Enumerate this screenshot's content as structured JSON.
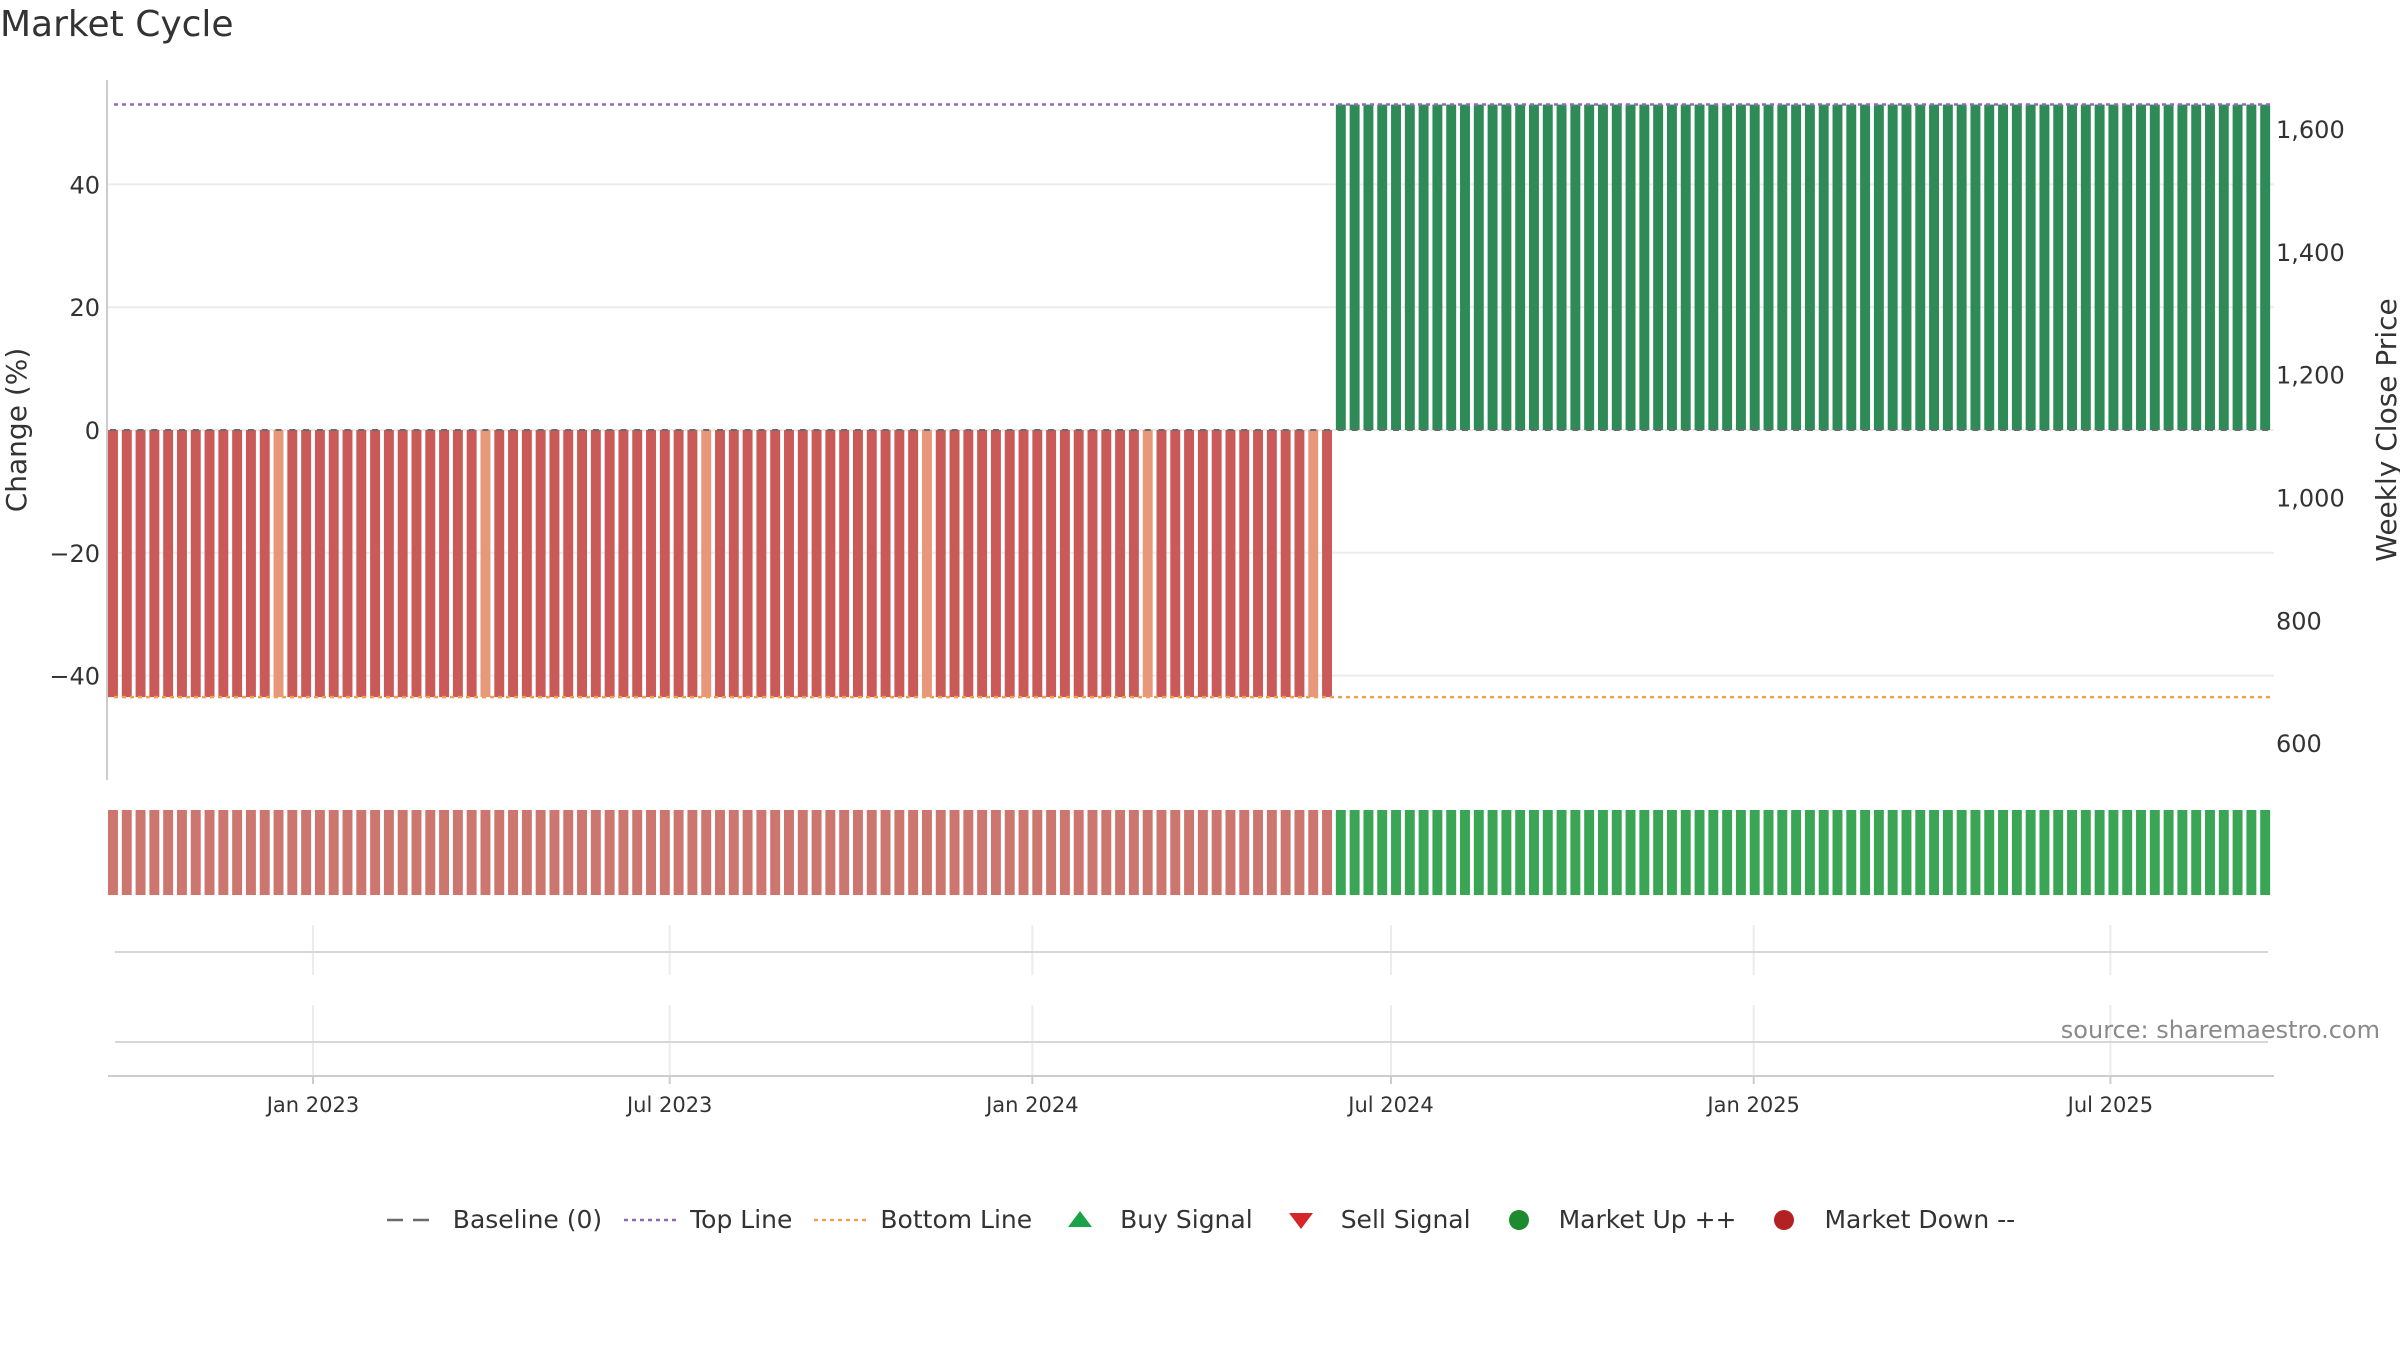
{
  "chart_data": {
    "type": "bar",
    "title": "Market Cycle",
    "ylabel_left": "Change (%)",
    "ylabel_right": "Weekly Close Price",
    "ylim_left": [
      -57,
      57
    ],
    "yticks_left": [
      -40,
      -20,
      0,
      20,
      40
    ],
    "ytick_labels_left": [
      "−40",
      "−20",
      "0",
      "20",
      "40"
    ],
    "ylim_right": [
      540,
      1680
    ],
    "yticks_right": [
      600,
      800,
      1000,
      1200,
      1400,
      1600
    ],
    "ytick_labels_right": [
      "600",
      "800",
      "1,000",
      "1,200",
      "1,400",
      "1,600"
    ],
    "x_range": [
      "2022-09-19",
      "2025-09-22"
    ],
    "xticks": [
      "2023-01-01",
      "2023-07-01",
      "2024-01-01",
      "2024-07-01",
      "2025-01-01",
      "2025-07-01"
    ],
    "xtick_labels": [
      "Jan 2023",
      "Jul 2023",
      "Jan 2024",
      "Jul 2024",
      "Jan 2025",
      "Jul 2025"
    ],
    "top_line": 53,
    "bottom_line": -43.5,
    "baseline": 0,
    "series": [
      {
        "name": "Market Down",
        "start_week": "2022-09-19",
        "end_week": "2024-05-27",
        "value": -43.5,
        "color": "#c95a58",
        "highlight_color": "#e8977a",
        "highlight_weeks": [
          "2022-12-12",
          "2023-03-27",
          "2023-07-17",
          "2023-11-06",
          "2024-02-26",
          "2024-05-20"
        ]
      },
      {
        "name": "Market Up",
        "start_week": "2024-06-03",
        "end_week": "2025-09-15",
        "value": 53,
        "color": "#2e8b57"
      }
    ],
    "regime_strip": [
      {
        "start_week": "2022-09-19",
        "end_week": "2024-05-27",
        "color": "#cc766f"
      },
      {
        "start_week": "2024-06-03",
        "end_week": "2025-09-15",
        "color": "#3aa655"
      }
    ],
    "legend": [
      {
        "label": "Baseline (0)",
        "marker": "dash",
        "color": "#6b6b6b"
      },
      {
        "label": "Top Line",
        "marker": "dot",
        "color": "#9467bd"
      },
      {
        "label": "Bottom Line",
        "marker": "dot",
        "color": "#f0a050"
      },
      {
        "label": "Buy Signal",
        "marker": "triangle-up",
        "color": "#1aa34a"
      },
      {
        "label": "Sell Signal",
        "marker": "triangle-down",
        "color": "#d62728"
      },
      {
        "label": "Market Up ++",
        "marker": "circle",
        "color": "#1e8a2e"
      },
      {
        "label": "Market Down --",
        "marker": "circle",
        "color": "#b22222"
      }
    ],
    "source": "source: sharemaestro.com",
    "grid": true,
    "legend_position": "bottom"
  }
}
